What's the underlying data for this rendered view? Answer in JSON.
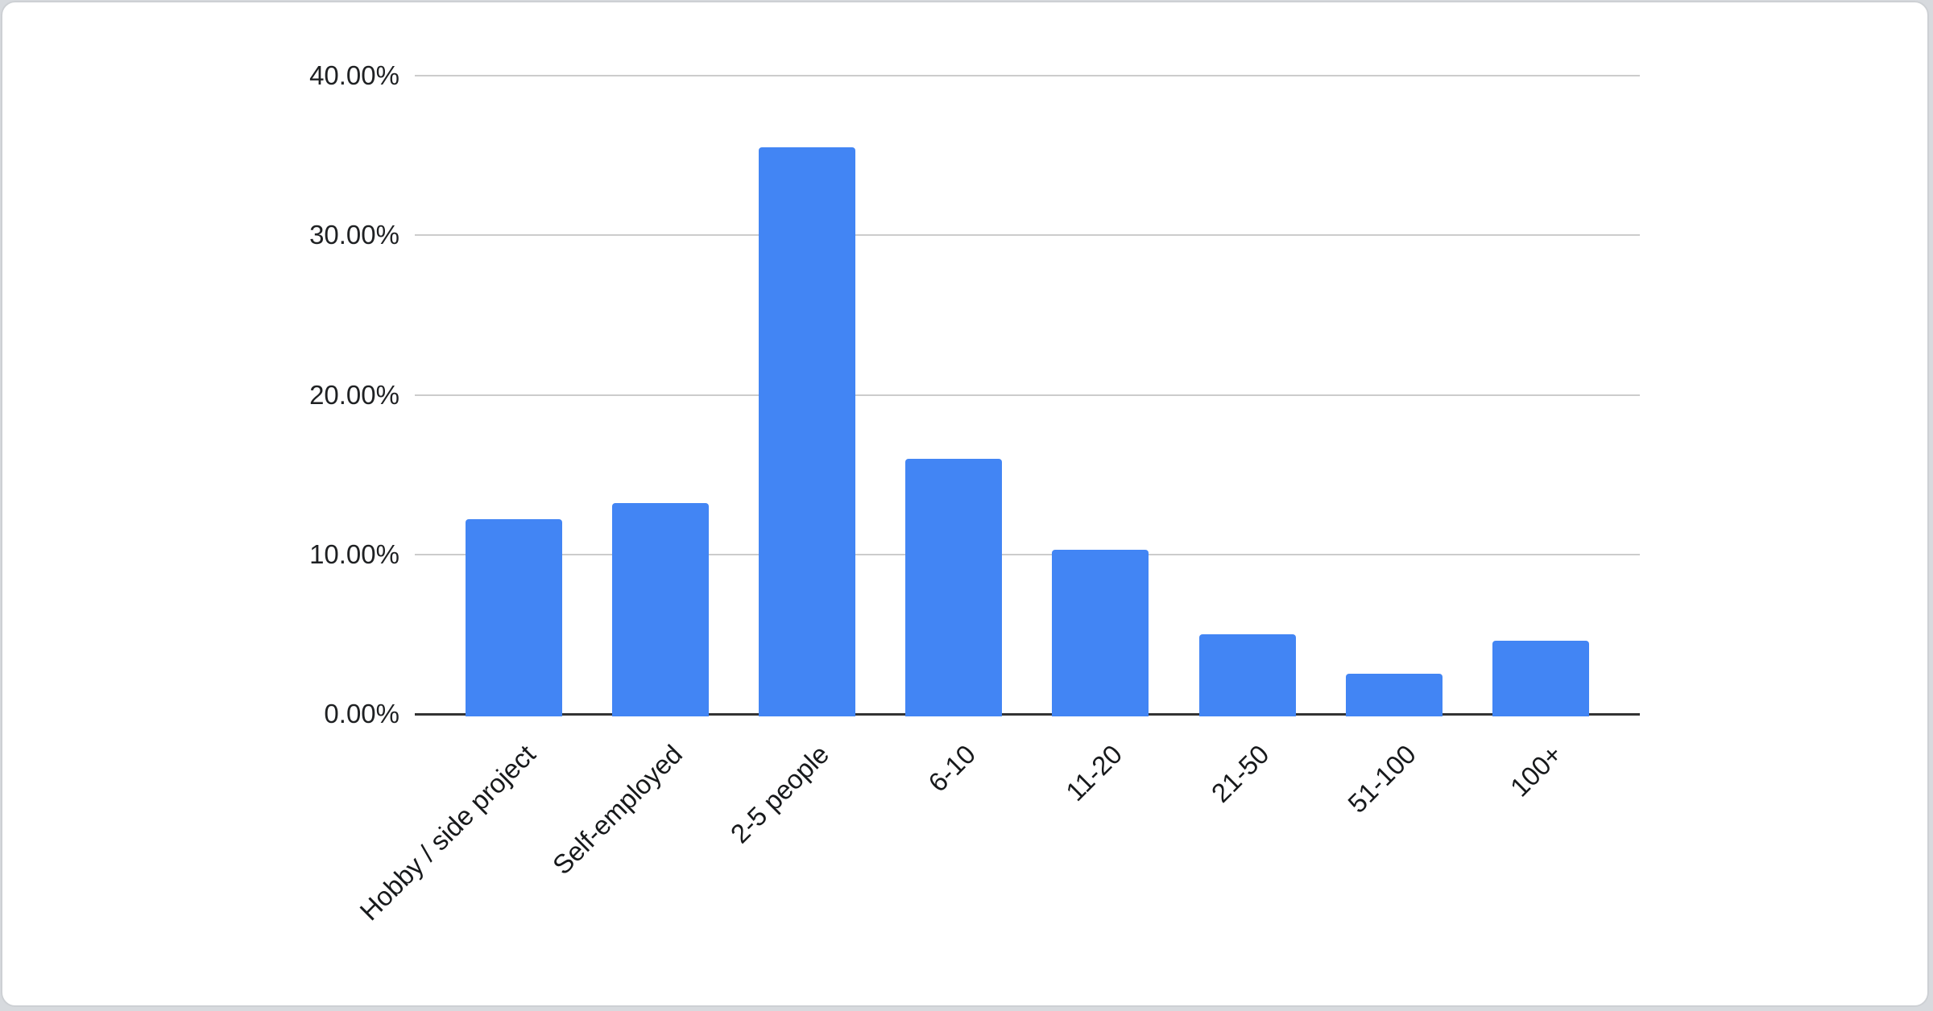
{
  "chart_data": {
    "type": "bar",
    "title": "",
    "xlabel": "",
    "ylabel": "",
    "categories": [
      "Hobby / side project",
      "Self-employed",
      "2-5 people",
      "6-10",
      "11-20",
      "21-50",
      "51-100",
      "100+"
    ],
    "values": [
      12.2,
      13.2,
      35.5,
      16.0,
      10.3,
      5.0,
      2.5,
      4.6
    ],
    "value_unit": "%",
    "y_ticks": [
      {
        "label": "40.00%",
        "value": 40
      },
      {
        "label": "30.00%",
        "value": 30
      },
      {
        "label": "20.00%",
        "value": 20
      },
      {
        "label": "10.00%",
        "value": 10
      },
      {
        "label": "0.00%",
        "value": 0
      }
    ],
    "ylim": [
      0,
      40
    ],
    "grid": true,
    "legend": "none",
    "bar_color": "#4285f4",
    "gridline_color": "#cccccc",
    "axis_line_color": "#333333",
    "label_color": "#1f2123"
  }
}
